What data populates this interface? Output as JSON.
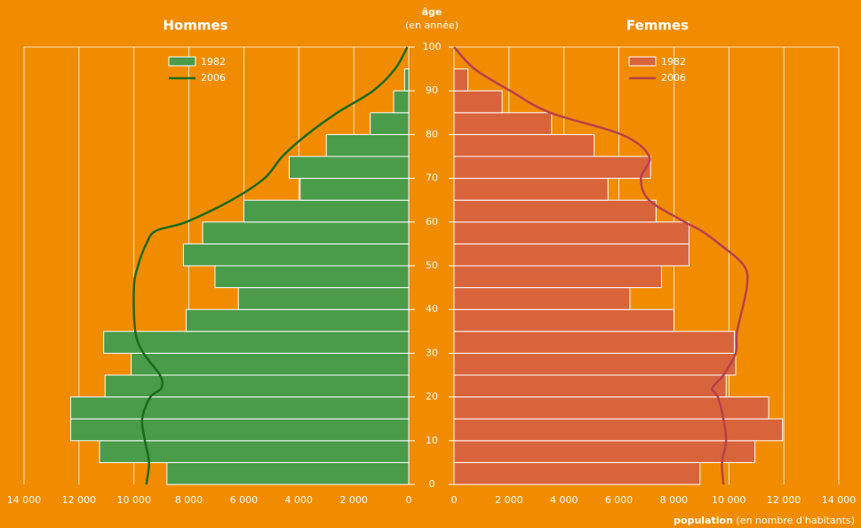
{
  "chart_data": {
    "type": "pyramid",
    "ylabel": "âge",
    "ylabel_sub": "(en année)",
    "xlabel": "population",
    "xlabel_sub": "(en nombre d'habitants)",
    "ylim": [
      0,
      100
    ],
    "yticks": [
      0,
      10,
      20,
      30,
      40,
      50,
      60,
      70,
      80,
      90,
      100
    ],
    "xlim": [
      0,
      14000
    ],
    "xticks": [
      0,
      {
        "value": 2000,
        "label": "2 000"
      },
      {
        "value": 4000,
        "label": "4 000"
      },
      {
        "value": 6000,
        "label": "6 000"
      },
      {
        "value": 8000,
        "label": "8 000"
      },
      {
        "value": 10000,
        "label": "10 000"
      },
      {
        "value": 12000,
        "label": "12 000"
      },
      {
        "value": 14000,
        "label": "14 000"
      }
    ],
    "grid": true,
    "bins": [
      0,
      5,
      10,
      15,
      20,
      25,
      30,
      35,
      40,
      45,
      50,
      55,
      60,
      65,
      70,
      75,
      80,
      85,
      90,
      95
    ],
    "line_ages": [
      0,
      5,
      10,
      15,
      20,
      22,
      25,
      30,
      35,
      45,
      50,
      55,
      58,
      60,
      65,
      70,
      75,
      80,
      85,
      90,
      95,
      100
    ],
    "panels": [
      {
        "title": "Hommes",
        "side": "left",
        "series": [
          {
            "name": "1982",
            "kind": "bar",
            "color": "#4a9b4a",
            "values": [
              8800,
              11250,
              12300,
              12300,
              11050,
              10100,
              11100,
              8100,
              6200,
              7050,
              8200,
              7500,
              6000,
              3950,
              4350,
              3000,
              1400,
              550,
              150
            ]
          },
          {
            "name": "2006",
            "kind": "line",
            "color": "#1c6a1c",
            "values": [
              9550,
              9450,
              9600,
              9700,
              9400,
              9000,
              9050,
              9650,
              9950,
              10000,
              9850,
              9550,
              9200,
              8100,
              6450,
              5250,
              4600,
              3700,
              2600,
              1300,
              500,
              50
            ]
          }
        ]
      },
      {
        "title": "Femmes",
        "side": "right",
        "series": [
          {
            "name": "1982",
            "kind": "bar",
            "color": "#d8643c",
            "values": [
              8950,
              10950,
              11950,
              11450,
              9900,
              10250,
              10200,
              8000,
              6400,
              7550,
              8550,
              8550,
              7350,
              5600,
              7150,
              5100,
              3550,
              1750,
              500
            ]
          },
          {
            "name": "2006",
            "kind": "line",
            "color": "#b7404c",
            "values": [
              9800,
              9750,
              9900,
              9800,
              9600,
              9400,
              9800,
              10250,
              10300,
              10650,
              10550,
              9650,
              9000,
              8400,
              7100,
              6800,
              7100,
              6100,
              3500,
              2050,
              750,
              0
            ]
          }
        ]
      }
    ]
  }
}
